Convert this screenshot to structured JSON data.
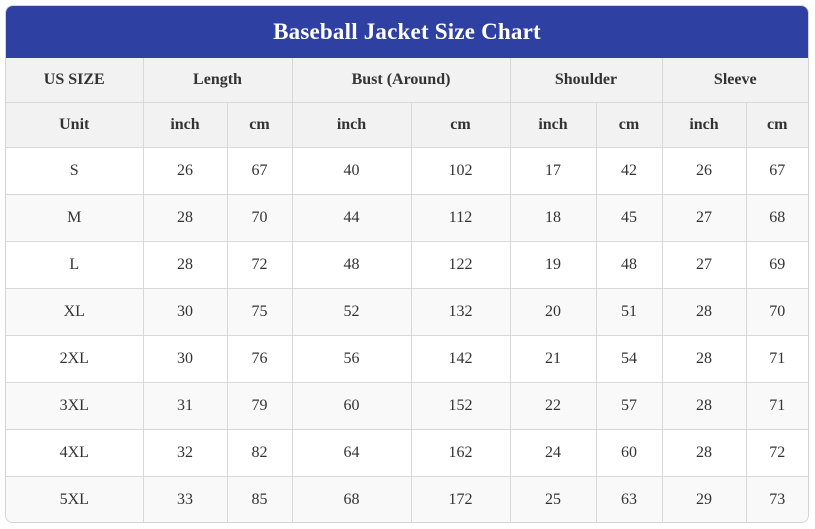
{
  "title": "Baseball Jacket Size Chart",
  "header1": {
    "size": "US SIZE",
    "length": "Length",
    "bust": "Bust (Around)",
    "shoulder": "Shoulder",
    "sleeve": "Sleeve"
  },
  "header2": {
    "unit": "Unit",
    "cols": [
      "inch",
      "cm",
      "inch",
      "cm",
      "inch",
      "cm",
      "inch",
      "cm"
    ]
  },
  "rows": [
    {
      "size": "S",
      "vals": [
        "26",
        "67",
        "40",
        "102",
        "17",
        "42",
        "26",
        "67"
      ]
    },
    {
      "size": "M",
      "vals": [
        "28",
        "70",
        "44",
        "112",
        "18",
        "45",
        "27",
        "68"
      ]
    },
    {
      "size": "L",
      "vals": [
        "28",
        "72",
        "48",
        "122",
        "19",
        "48",
        "27",
        "69"
      ]
    },
    {
      "size": "XL",
      "vals": [
        "30",
        "75",
        "52",
        "132",
        "20",
        "51",
        "28",
        "70"
      ]
    },
    {
      "size": "2XL",
      "vals": [
        "30",
        "76",
        "56",
        "142",
        "21",
        "54",
        "28",
        "71"
      ]
    },
    {
      "size": "3XL",
      "vals": [
        "31",
        "79",
        "60",
        "152",
        "22",
        "57",
        "28",
        "71"
      ]
    },
    {
      "size": "4XL",
      "vals": [
        "32",
        "82",
        "64",
        "162",
        "24",
        "60",
        "28",
        "72"
      ]
    },
    {
      "size": "5XL",
      "vals": [
        "33",
        "85",
        "68",
        "172",
        "25",
        "63",
        "29",
        "73"
      ]
    }
  ],
  "colors": {
    "title_bg": "#2e40a2",
    "title_text": "#ffffff",
    "header_bg": "#f2f2f2",
    "alt_row_bg": "#f9f9f9",
    "border": "#d8d8d8"
  }
}
